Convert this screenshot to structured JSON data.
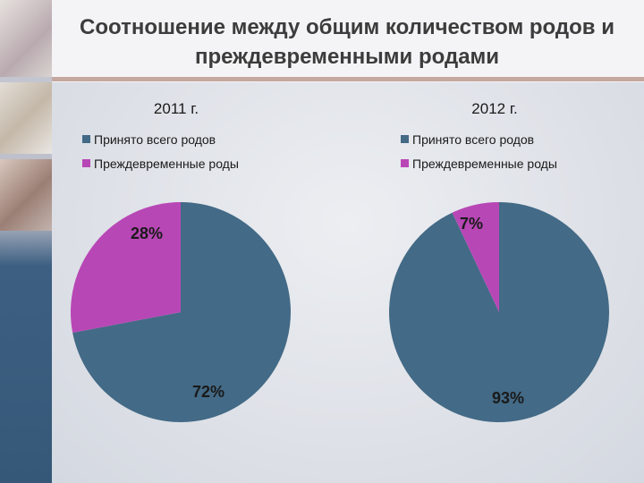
{
  "title": "Соотношение между общим количеством родов и преждевременными родами",
  "colors": {
    "total": "#436a86",
    "preterm": "#b847b6"
  },
  "chart_data": [
    {
      "type": "pie",
      "title": "2011 г.",
      "legend": [
        "Принято всего родов",
        "Преждевременные роды"
      ],
      "slices": [
        {
          "name": "Принято всего родов",
          "value": 72,
          "label": "72%"
        },
        {
          "name": "Преждевременные роды",
          "value": 28,
          "label": "28%"
        }
      ]
    },
    {
      "type": "pie",
      "title": "2012 г.",
      "legend": [
        "Принято всего родов",
        "Преждевременные роды"
      ],
      "slices": [
        {
          "name": "Принято всего родов",
          "value": 93,
          "label": "93%"
        },
        {
          "name": "Преждевременные роды",
          "value": 7,
          "label": "7%"
        }
      ]
    }
  ]
}
